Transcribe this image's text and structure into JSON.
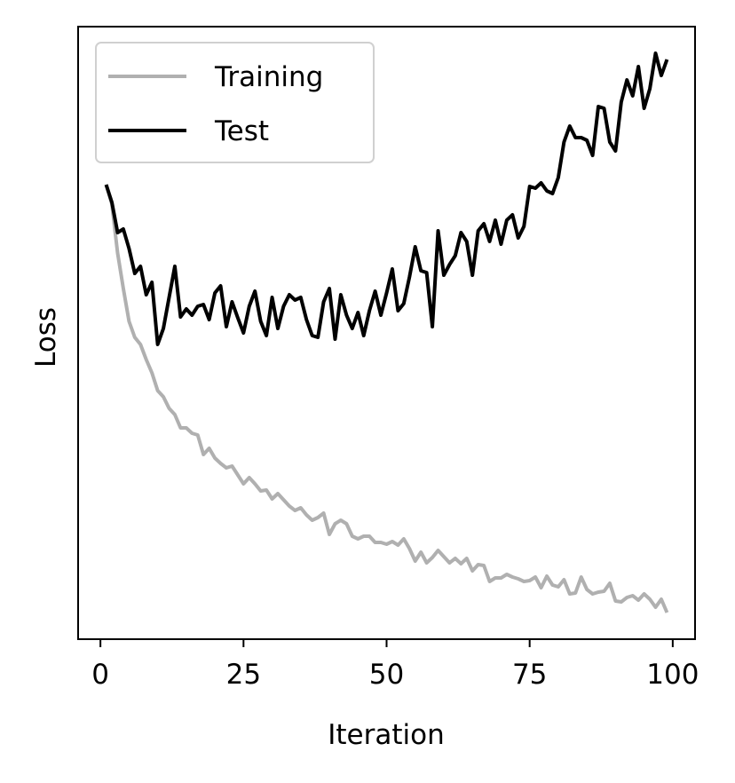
{
  "chart_data": {
    "type": "line",
    "xlabel": "Iteration",
    "ylabel": "Loss",
    "x": [
      1,
      2,
      3,
      4,
      5,
      6,
      7,
      8,
      9,
      10,
      11,
      12,
      13,
      14,
      15,
      16,
      17,
      18,
      19,
      20,
      21,
      22,
      23,
      24,
      25,
      26,
      27,
      28,
      29,
      30,
      31,
      32,
      33,
      34,
      35,
      36,
      37,
      38,
      39,
      40,
      41,
      42,
      43,
      44,
      45,
      46,
      47,
      48,
      49,
      50,
      51,
      52,
      53,
      54,
      55,
      56,
      57,
      58,
      59,
      60,
      61,
      62,
      63,
      64,
      65,
      66,
      67,
      68,
      69,
      70,
      71,
      72,
      73,
      74,
      75,
      76,
      77,
      78,
      79,
      80,
      81,
      82,
      83,
      84,
      85,
      86,
      87,
      88,
      89,
      90,
      91,
      92,
      93,
      94,
      95,
      96,
      97,
      98,
      99
    ],
    "series": [
      {
        "name": "Training",
        "color": "#b0b0b0",
        "values": [
          512,
          490,
          435,
          395,
          358,
          340,
          332,
          315,
          300,
          280,
          273,
          260,
          253,
          238,
          238,
          232,
          230,
          208,
          215,
          204,
          198,
          193,
          195,
          185,
          175,
          182,
          175,
          167,
          168,
          158,
          164,
          157,
          150,
          145,
          148,
          140,
          134,
          137,
          142,
          118,
          130,
          134,
          130,
          116,
          113,
          116,
          116,
          109,
          109,
          107,
          110,
          106,
          113,
          102,
          88,
          98,
          86,
          92,
          100,
          93,
          86,
          91,
          85,
          91,
          77,
          84,
          83,
          65,
          69,
          69,
          73,
          70,
          68,
          65,
          66,
          70,
          58,
          71,
          61,
          59,
          67,
          51,
          52,
          70,
          56,
          51,
          53,
          54,
          63,
          43,
          42,
          47,
          49,
          44,
          51,
          45,
          36,
          45,
          30
        ]
      },
      {
        "name": "Test",
        "color": "#000000",
        "values": [
          512,
          492,
          458,
          462,
          440,
          412,
          420,
          388,
          402,
          332,
          350,
          385,
          420,
          363,
          372,
          365,
          375,
          377,
          360,
          390,
          398,
          352,
          380,
          362,
          345,
          375,
          392,
          358,
          342,
          385,
          350,
          375,
          388,
          382,
          385,
          360,
          342,
          340,
          380,
          395,
          338,
          388,
          365,
          350,
          368,
          342,
          370,
          392,
          365,
          390,
          417,
          370,
          378,
          408,
          442,
          415,
          413,
          352,
          460,
          410,
          422,
          432,
          458,
          448,
          410,
          460,
          468,
          448,
          472,
          445,
          472,
          478,
          452,
          465,
          510,
          508,
          514,
          505,
          502,
          520,
          560,
          578,
          565,
          565,
          562,
          545,
          600,
          598,
          560,
          550,
          605,
          630,
          612,
          645,
          598,
          620,
          660,
          635,
          653
        ]
      }
    ],
    "xlim": [
      -3.9,
      103.9
    ],
    "xticks": [
      0,
      25,
      50,
      75,
      100
    ],
    "ylim": [
      0,
      690
    ],
    "legend": "upper left"
  }
}
